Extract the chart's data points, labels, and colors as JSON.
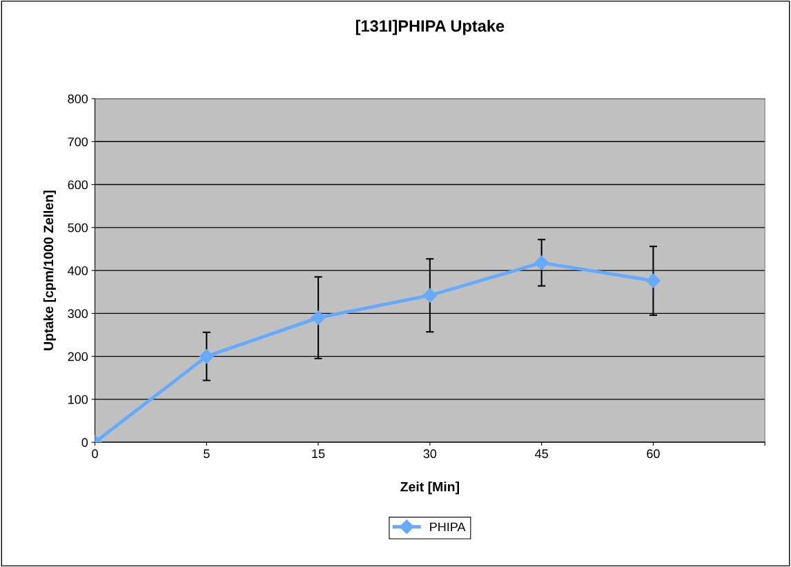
{
  "chart_data": {
    "type": "line",
    "title": "[131I]PHIPA Uptake",
    "xlabel": "Zeit [Min]",
    "ylabel": "Uptake [cpm/1000 Zellen]",
    "categories": [
      "0",
      "5",
      "15",
      "30",
      "45",
      "60",
      null
    ],
    "series": [
      {
        "name": "PHIPA",
        "color": "#66aaff",
        "values": [
          0,
          200,
          290,
          342,
          418,
          376,
          null
        ],
        "errors": [
          null,
          56,
          95,
          85,
          54,
          80,
          null
        ]
      }
    ],
    "ylim": [
      0,
      800
    ],
    "yticks": [
      0,
      100,
      200,
      300,
      400,
      500,
      600,
      700,
      800
    ],
    "grid": "y",
    "legend": "bottom",
    "marker": "diamond",
    "line_style": "solid"
  }
}
